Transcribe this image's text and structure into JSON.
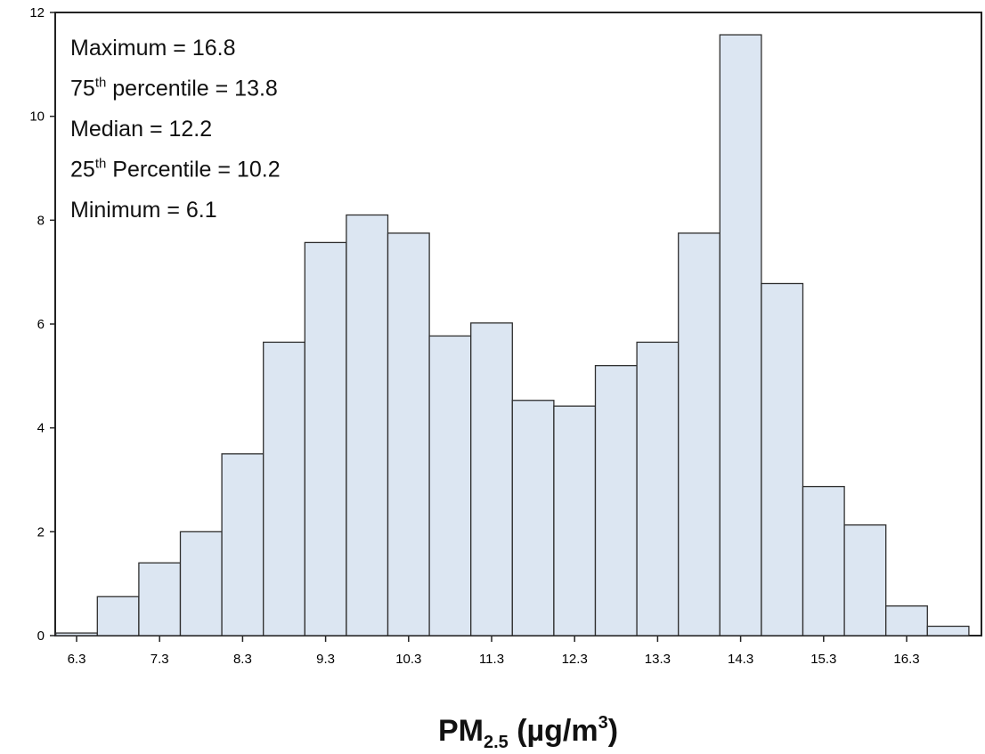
{
  "chart_data": {
    "type": "bar",
    "categories": [
      "6.3",
      "6.8",
      "7.3",
      "7.8",
      "8.3",
      "8.8",
      "9.3",
      "9.8",
      "10.3",
      "10.8",
      "11.3",
      "11.8",
      "12.3",
      "12.8",
      "13.3",
      "13.8",
      "14.3",
      "14.8",
      "15.3",
      "15.8",
      "16.3",
      "16.8"
    ],
    "values": [
      0.05,
      0.75,
      1.4,
      2.0,
      3.5,
      5.65,
      7.57,
      8.1,
      7.75,
      5.77,
      6.02,
      4.53,
      4.42,
      5.2,
      5.65,
      7.75,
      11.57,
      6.78,
      2.87,
      2.13,
      0.57,
      0.18
    ],
    "x_tick_labels": [
      "6.3",
      "7.3",
      "8.3",
      "9.3",
      "10.3",
      "11.3",
      "12.3",
      "13.3",
      "14.3",
      "15.3",
      "16.3"
    ],
    "y_tick_labels": [
      "0",
      "2",
      "4",
      "6",
      "8",
      "10",
      "12"
    ],
    "ylim": [
      0,
      12
    ],
    "xlabel": {
      "main": "PM",
      "sub": "2.5",
      "unit_open": " (µg/m",
      "unit_sup": "3",
      "unit_close": ")"
    },
    "ylabel": "",
    "bar_fill": "#dce6f2",
    "bar_stroke": "#2f2f2f",
    "annotations": [
      {
        "pre": "Maximum = 16.8",
        "sup": "",
        "post": ""
      },
      {
        "pre": "75",
        "sup": "th",
        "post": " percentile = 13.8"
      },
      {
        "pre": "Median = 12.2",
        "sup": "",
        "post": ""
      },
      {
        "pre": "25",
        "sup": "th",
        "post": " Percentile = 10.2"
      },
      {
        "pre": "Minimum = 6.1",
        "sup": "",
        "post": ""
      }
    ]
  }
}
